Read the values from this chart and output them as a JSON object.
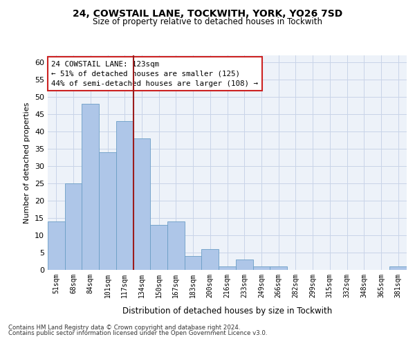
{
  "title1": "24, COWSTAIL LANE, TOCKWITH, YORK, YO26 7SD",
  "title2": "Size of property relative to detached houses in Tockwith",
  "xlabel": "Distribution of detached houses by size in Tockwith",
  "ylabel": "Number of detached properties",
  "categories": [
    "51sqm",
    "68sqm",
    "84sqm",
    "101sqm",
    "117sqm",
    "134sqm",
    "150sqm",
    "167sqm",
    "183sqm",
    "200sqm",
    "216sqm",
    "233sqm",
    "249sqm",
    "266sqm",
    "282sqm",
    "299sqm",
    "315sqm",
    "332sqm",
    "348sqm",
    "365sqm",
    "381sqm"
  ],
  "values": [
    14,
    25,
    48,
    34,
    43,
    38,
    13,
    14,
    4,
    6,
    1,
    3,
    1,
    1,
    0,
    0,
    0,
    0,
    0,
    0,
    1
  ],
  "bar_color": "#aec6e8",
  "bar_edge_color": "#6a9ec5",
  "ylim": [
    0,
    62
  ],
  "yticks": [
    0,
    5,
    10,
    15,
    20,
    25,
    30,
    35,
    40,
    45,
    50,
    55,
    60
  ],
  "annotation_line1": "24 COWSTAIL LANE: 123sqm",
  "annotation_line2": "← 51% of detached houses are smaller (125)",
  "annotation_line3": "44% of semi-detached houses are larger (108) →",
  "vline_x_index": 4.5,
  "vline_color": "#9b1c1c",
  "annotation_box_color": "#ffffff",
  "annotation_box_edge": "#cc2222",
  "bg_color": "#ffffff",
  "axes_bg_color": "#edf2f9",
  "grid_color": "#c8d4e8",
  "footnote1": "Contains HM Land Registry data © Crown copyright and database right 2024.",
  "footnote2": "Contains public sector information licensed under the Open Government Licence v3.0."
}
